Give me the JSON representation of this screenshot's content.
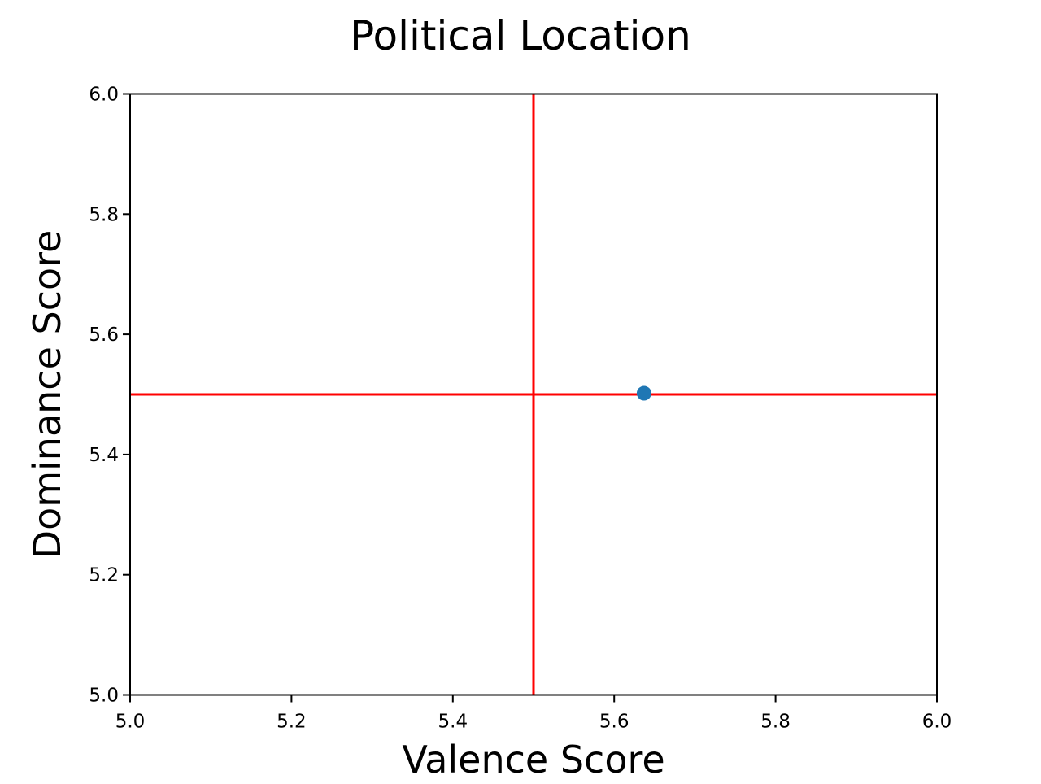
{
  "chart_data": {
    "type": "scatter",
    "title": "Political Location",
    "xlabel": "Valence Score",
    "ylabel": "Dominance Score",
    "xlim": [
      5.0,
      6.0
    ],
    "ylim": [
      5.0,
      6.0
    ],
    "x_ticks": [
      "5.0",
      "5.2",
      "5.4",
      "5.6",
      "5.8",
      "6.0"
    ],
    "y_ticks": [
      "5.0",
      "5.2",
      "5.4",
      "5.6",
      "5.8",
      "6.0"
    ],
    "grid": false,
    "points": [
      {
        "x": 5.637,
        "y": 5.502
      }
    ],
    "point_color": "#1f77b4",
    "reference_lines": {
      "vertical_x": 5.5,
      "horizontal_y": 5.5,
      "color": "#ff0000"
    }
  }
}
